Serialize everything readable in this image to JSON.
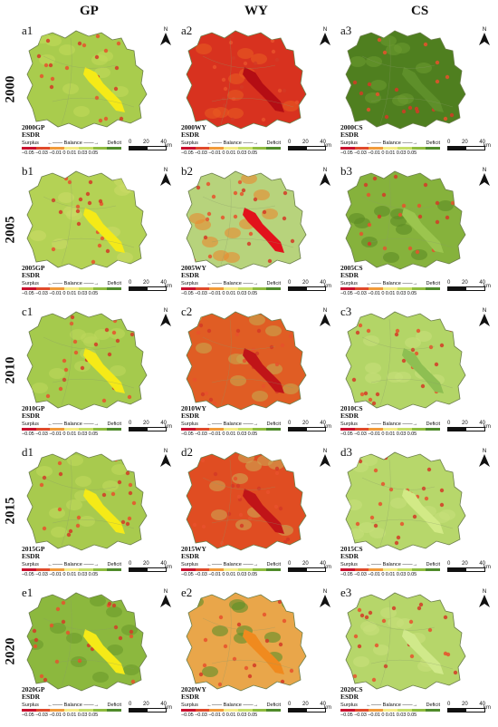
{
  "column_headers": [
    "GP",
    "WY",
    "CS"
  ],
  "row_headers": [
    "2000",
    "2005",
    "2010",
    "2015",
    "2020"
  ],
  "legend": {
    "surplus": "Surplus",
    "balance": "Balance",
    "deficit": "Deficit",
    "ticks": "−0.05 −0.03 −0.01 0   0.01 0.03 0.05",
    "colors": [
      "#c8102e",
      "#e04a2b",
      "#f19a3a",
      "#f6ec88",
      "#c8df6a",
      "#8fbc3f",
      "#4f8a2a"
    ]
  },
  "scale": {
    "n0": "0",
    "n1": "20",
    "n2": "40",
    "unit": "km"
  },
  "north_label": "N",
  "esdr_label": "ESDR",
  "panels": [
    {
      "id": "a1",
      "name": "2000GP",
      "base": "#a9cc4d",
      "lake": "#f5ea17",
      "tone": "#c2d85a"
    },
    {
      "id": "a2",
      "name": "2000WY",
      "base": "#d8321f",
      "lake": "#b40d14",
      "tone": "#e85a22"
    },
    {
      "id": "a3",
      "name": "2000CS",
      "base": "#4f7f1f",
      "lake": "#5e8f2a",
      "tone": "#6a9a2e"
    },
    {
      "id": "b1",
      "name": "2005GP",
      "base": "#b4d255",
      "lake": "#f5ea17",
      "tone": "#cada66"
    },
    {
      "id": "b2",
      "name": "2005WY",
      "base": "#b7d37c",
      "lake": "#e2121b",
      "tone": "#e98a30"
    },
    {
      "id": "b3",
      "name": "2005CS",
      "base": "#86b23c",
      "lake": "#9bc54e",
      "tone": "#5d8c25"
    },
    {
      "id": "c1",
      "name": "2010GP",
      "base": "#a5ca4d",
      "lake": "#f5ea17",
      "tone": "#bdd75b"
    },
    {
      "id": "c2",
      "name": "2010WY",
      "base": "#e05d24",
      "lake": "#c01418",
      "tone": "#c8a64c"
    },
    {
      "id": "c3",
      "name": "2010CS",
      "base": "#b3d567",
      "lake": "#8ebf52",
      "tone": "#c7e07a"
    },
    {
      "id": "d1",
      "name": "2015GP",
      "base": "#a8ca4e",
      "lake": "#f5ea17",
      "tone": "#bfd85c"
    },
    {
      "id": "d2",
      "name": "2015WY",
      "base": "#e04d22",
      "lake": "#c01418",
      "tone": "#cfa552"
    },
    {
      "id": "d3",
      "name": "2015CS",
      "base": "#b7d76b",
      "lake": "#d2ea86",
      "tone": "#c6e07a"
    },
    {
      "id": "e1",
      "name": "2020GP",
      "base": "#8cb83e",
      "lake": "#f5ea17",
      "tone": "#6b9a2c"
    },
    {
      "id": "e2",
      "name": "2020WY",
      "base": "#e9a64a",
      "lake": "#f08a1e",
      "tone": "#5e8f2a"
    },
    {
      "id": "e3",
      "name": "2020CS",
      "base": "#b6d66a",
      "lake": "#d0e98a",
      "tone": "#c8e07c"
    }
  ]
}
